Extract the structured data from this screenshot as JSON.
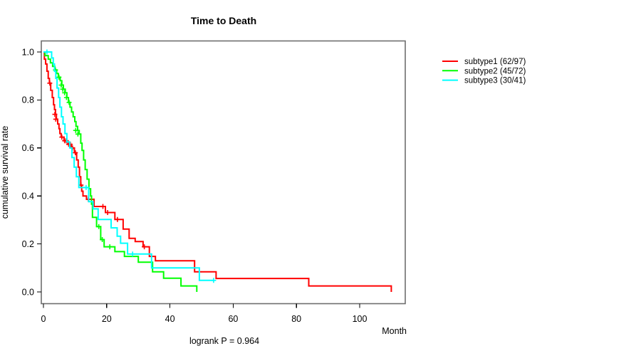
{
  "chart_data": {
    "type": "line",
    "subtype": "kaplan-meier-step",
    "title": "Time to Death",
    "xlabel": "Month",
    "ylabel": "cumulative survival rate",
    "annotation": "logrank P = 0.964",
    "x_ticks": [
      0,
      20,
      40,
      60,
      80,
      100
    ],
    "y_ticks": [
      0.0,
      0.2,
      0.4,
      0.6,
      0.8,
      1.0
    ],
    "xlim": [
      0,
      114
    ],
    "ylim": [
      0,
      1
    ],
    "grid": false,
    "legend_position": "right-outside",
    "frame_color": "#6e6e6e",
    "axis_color": "#000000",
    "series": [
      {
        "name": "subtype1 (62/97)",
        "color": "#ff0000",
        "end": 110.0,
        "steps": [
          [
            0,
            1.0
          ],
          [
            0.3,
            0.97
          ],
          [
            0.7,
            0.95
          ],
          [
            1.1,
            0.92
          ],
          [
            1.5,
            0.89
          ],
          [
            1.9,
            0.87
          ],
          [
            2.3,
            0.84
          ],
          [
            2.8,
            0.81
          ],
          [
            3.2,
            0.78
          ],
          [
            3.5,
            0.76
          ],
          [
            3.8,
            0.74
          ],
          [
            4.1,
            0.72
          ],
          [
            4.5,
            0.7
          ],
          [
            4.9,
            0.68
          ],
          [
            5.2,
            0.66
          ],
          [
            5.6,
            0.645
          ],
          [
            6.5,
            0.63
          ],
          [
            7.7,
            0.615
          ],
          [
            8.8,
            0.6
          ],
          [
            9.8,
            0.58
          ],
          [
            10.5,
            0.55
          ],
          [
            11.0,
            0.52
          ],
          [
            11.4,
            0.48
          ],
          [
            11.8,
            0.445
          ],
          [
            12.1,
            0.42
          ],
          [
            12.5,
            0.4
          ],
          [
            13.6,
            0.386
          ],
          [
            16.0,
            0.356
          ],
          [
            19.6,
            0.331
          ],
          [
            22.6,
            0.302
          ],
          [
            25.2,
            0.262
          ],
          [
            27.1,
            0.223
          ],
          [
            29.0,
            0.21
          ],
          [
            31.5,
            0.188
          ],
          [
            33.5,
            0.148
          ],
          [
            35.4,
            0.13
          ],
          [
            47.8,
            0.084
          ],
          [
            54.6,
            0.056
          ],
          [
            83.9,
            0.025
          ],
          [
            110.0,
            0.0
          ]
        ],
        "censors": [
          [
            2.0,
            0.87
          ],
          [
            3.6,
            0.74
          ],
          [
            3.9,
            0.72
          ],
          [
            5.8,
            0.645
          ],
          [
            6.7,
            0.63
          ],
          [
            7.2,
            0.63
          ],
          [
            8.0,
            0.615
          ],
          [
            8.5,
            0.615
          ],
          [
            9.2,
            0.6
          ],
          [
            10.1,
            0.58
          ],
          [
            11.9,
            0.445
          ],
          [
            14.2,
            0.386
          ],
          [
            15.2,
            0.386
          ],
          [
            18.8,
            0.356
          ],
          [
            20.3,
            0.331
          ],
          [
            23.4,
            0.302
          ],
          [
            31.9,
            0.188
          ]
        ]
      },
      {
        "name": "subtype2 (45/72)",
        "color": "#00ff00",
        "end": 48.5,
        "steps": [
          [
            0,
            1.0
          ],
          [
            0.5,
            0.985
          ],
          [
            1.5,
            0.97
          ],
          [
            2.2,
            0.955
          ],
          [
            2.9,
            0.94
          ],
          [
            3.6,
            0.925
          ],
          [
            4.2,
            0.91
          ],
          [
            4.7,
            0.895
          ],
          [
            5.3,
            0.88
          ],
          [
            5.8,
            0.862
          ],
          [
            6.3,
            0.845
          ],
          [
            6.9,
            0.83
          ],
          [
            7.4,
            0.81
          ],
          [
            7.9,
            0.79
          ],
          [
            8.4,
            0.77
          ],
          [
            8.9,
            0.75
          ],
          [
            9.4,
            0.73
          ],
          [
            9.9,
            0.71
          ],
          [
            10.3,
            0.69
          ],
          [
            10.8,
            0.673
          ],
          [
            11.3,
            0.658
          ],
          [
            11.8,
            0.62
          ],
          [
            12.2,
            0.59
          ],
          [
            12.7,
            0.55
          ],
          [
            13.2,
            0.51
          ],
          [
            13.8,
            0.47
          ],
          [
            14.4,
            0.43
          ],
          [
            14.9,
            0.4
          ],
          [
            15.2,
            0.366
          ],
          [
            15.5,
            0.311
          ],
          [
            16.8,
            0.272
          ],
          [
            18.1,
            0.218
          ],
          [
            19.2,
            0.188
          ],
          [
            22.6,
            0.168
          ],
          [
            25.6,
            0.148
          ],
          [
            30.0,
            0.124
          ],
          [
            34.5,
            0.084
          ],
          [
            38.0,
            0.057
          ],
          [
            43.5,
            0.025
          ],
          [
            48.5,
            0.0
          ]
        ],
        "censors": [
          [
            3.8,
            0.925
          ],
          [
            4.9,
            0.895
          ],
          [
            5.6,
            0.862
          ],
          [
            6.1,
            0.845
          ],
          [
            6.7,
            0.83
          ],
          [
            7.3,
            0.81
          ],
          [
            8.1,
            0.79
          ],
          [
            10.2,
            0.673
          ],
          [
            10.9,
            0.658
          ],
          [
            17.5,
            0.272
          ],
          [
            18.6,
            0.218
          ],
          [
            21.0,
            0.188
          ]
        ]
      },
      {
        "name": "subtype3 (30/41)",
        "color": "#00ffff",
        "end": 53.8,
        "steps": [
          [
            0,
            1.0
          ],
          [
            2.6,
            0.975
          ],
          [
            3.1,
            0.95
          ],
          [
            3.5,
            0.92
          ],
          [
            3.9,
            0.89
          ],
          [
            4.3,
            0.85
          ],
          [
            4.8,
            0.81
          ],
          [
            5.2,
            0.77
          ],
          [
            5.7,
            0.73
          ],
          [
            6.2,
            0.7
          ],
          [
            6.8,
            0.66
          ],
          [
            7.4,
            0.625
          ],
          [
            8.3,
            0.6
          ],
          [
            9.0,
            0.56
          ],
          [
            9.7,
            0.52
          ],
          [
            10.4,
            0.48
          ],
          [
            11.2,
            0.435
          ],
          [
            14.3,
            0.376
          ],
          [
            15.7,
            0.346
          ],
          [
            17.3,
            0.302
          ],
          [
            21.4,
            0.267
          ],
          [
            23.3,
            0.232
          ],
          [
            24.4,
            0.203
          ],
          [
            26.6,
            0.158
          ],
          [
            34.2,
            0.1
          ],
          [
            49.3,
            0.048
          ]
        ],
        "censors": [
          [
            1.1,
            1.0
          ],
          [
            13.5,
            0.435
          ],
          [
            28.2,
            0.158
          ],
          [
            53.8,
            0.048
          ]
        ]
      }
    ]
  }
}
